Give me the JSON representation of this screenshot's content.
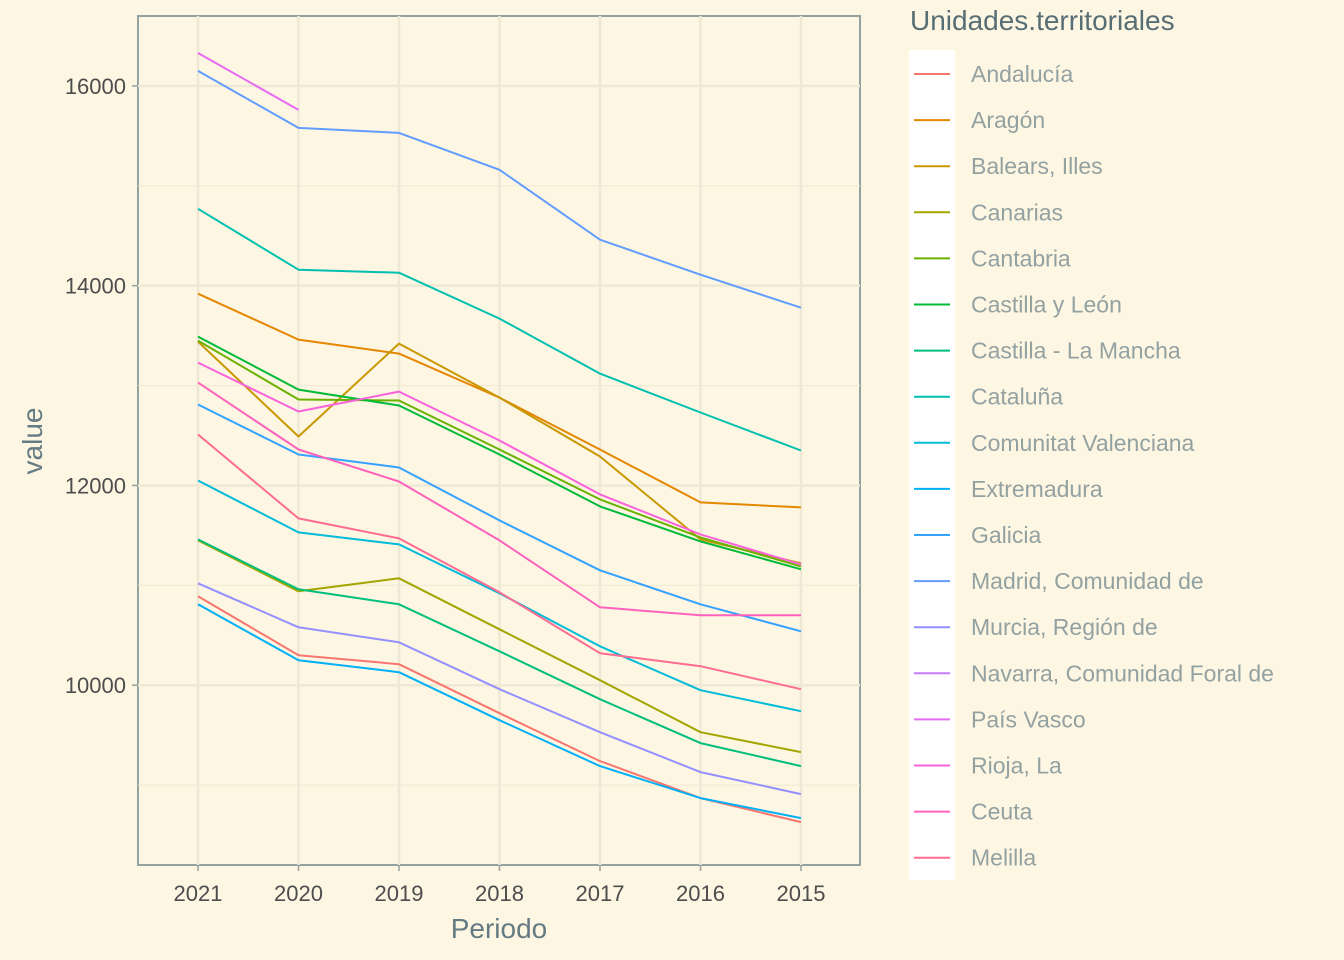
{
  "chart_data": {
    "type": "line",
    "x": [
      "2021",
      "2020",
      "2019",
      "2018",
      "2017",
      "2016",
      "2015"
    ],
    "xlabel": "Periodo",
    "ylabel": "value",
    "ylim": [
      8200,
      16700
    ],
    "yticks": [
      10000,
      12000,
      14000,
      16000
    ],
    "grid": true,
    "legend_position": "right",
    "legend_title": "Unidades.territoriales",
    "series": [
      {
        "name": "Andalucía",
        "color": "#F8766D",
        "values": [
          10890,
          10300,
          10210,
          9720,
          9240,
          8870,
          8630
        ]
      },
      {
        "name": "Aragón",
        "color": "#E58700",
        "values": [
          13920,
          13460,
          13320,
          12880,
          12360,
          11830,
          11780
        ]
      },
      {
        "name": "Balears, Illes",
        "color": "#C99800",
        "values": [
          13440,
          12490,
          13420,
          12880,
          12290,
          11460,
          11220
        ]
      },
      {
        "name": "Canarias",
        "color": "#A3A500",
        "values": [
          11450,
          10940,
          11070,
          10560,
          10050,
          9530,
          9330
        ]
      },
      {
        "name": "Cantabria",
        "color": "#6BB100",
        "values": [
          13450,
          12860,
          12850,
          12360,
          11860,
          11480,
          11190
        ]
      },
      {
        "name": "Castilla y León",
        "color": "#00BA38",
        "values": [
          13490,
          12960,
          12800,
          12310,
          11790,
          11440,
          11160
        ]
      },
      {
        "name": "Castilla - La Mancha",
        "color": "#00BF7D",
        "values": [
          11460,
          10960,
          10810,
          10340,
          9860,
          9420,
          9190
        ]
      },
      {
        "name": "Cataluña",
        "color": "#00C0AF",
        "values": [
          14770,
          14160,
          14130,
          13670,
          13120,
          12730,
          12350
        ]
      },
      {
        "name": "Comunitat Valenciana",
        "color": "#00BCD8",
        "values": [
          12050,
          11530,
          11410,
          10920,
          10390,
          9950,
          9740
        ]
      },
      {
        "name": "Extremadura",
        "color": "#00B0F6",
        "values": [
          10810,
          10250,
          10130,
          9650,
          9190,
          8870,
          8670
        ]
      },
      {
        "name": "Galicia",
        "color": "#35A2FF",
        "values": [
          12810,
          12310,
          12180,
          11650,
          11150,
          10810,
          10540
        ]
      },
      {
        "name": "Madrid, Comunidad de",
        "color": "#619CFF",
        "values": [
          16150,
          15580,
          15530,
          15160,
          14460,
          14110,
          13780
        ]
      },
      {
        "name": "Murcia, Región de",
        "color": "#9590FF",
        "values": [
          11020,
          10580,
          10430,
          9960,
          9530,
          9130,
          8910
        ]
      },
      {
        "name": "Navarra, Comunidad Foral de",
        "color": "#C77CFF",
        "values": [
          null,
          null,
          null,
          null,
          null,
          null,
          null
        ]
      },
      {
        "name": "País Vasco",
        "color": "#E76BF3",
        "values": [
          16330,
          15760,
          null,
          null,
          null,
          null,
          null
        ]
      },
      {
        "name": "Rioja, La",
        "color": "#FA62DB",
        "values": [
          13230,
          12740,
          12940,
          12450,
          11910,
          11510,
          11210
        ]
      },
      {
        "name": "Ceuta",
        "color": "#FF62BC",
        "values": [
          13030,
          12360,
          12040,
          11450,
          10780,
          10700,
          10700
        ]
      },
      {
        "name": "Melilla",
        "color": "#FF6C91",
        "values": [
          12510,
          11670,
          11470,
          10930,
          10320,
          10190,
          9960
        ]
      }
    ]
  }
}
